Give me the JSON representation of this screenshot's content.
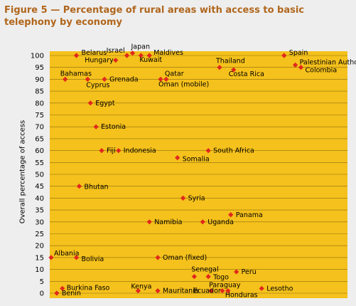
{
  "title": "Figure 5 — Percentage of rural areas with access to basic telephony by economy",
  "chart_data": {
    "type": "scatter",
    "title": "Figure 5 — Percentage of rural areas with access to basic telephony by economy",
    "xlabel": "",
    "ylabel": "Overall percentage of access",
    "ylim": [
      0,
      100
    ],
    "yticks": [
      0,
      5,
      10,
      15,
      20,
      25,
      30,
      35,
      40,
      45,
      50,
      55,
      60,
      65,
      70,
      75,
      80,
      85,
      90,
      95,
      100
    ],
    "grid": "horizontal",
    "colors": {
      "plot_bg": "#f5c11c",
      "grid": "#8a6e10",
      "marker": "#e0281c",
      "title": "#b0661c"
    },
    "points": [
      {
        "label": "Belarus",
        "x": 10,
        "y": 100
      },
      {
        "label": "Israel",
        "x": 28,
        "y": 100
      },
      {
        "label": "Japan",
        "x": 30,
        "y": 101
      },
      {
        "label": "Maldives",
        "x": 36,
        "y": 100
      },
      {
        "label": "Kuwait",
        "x": 33,
        "y": 100
      },
      {
        "label": "Spain",
        "x": 84,
        "y": 100
      },
      {
        "label": "Hungary",
        "x": 24,
        "y": 98
      },
      {
        "label": "Thailand",
        "x": 61,
        "y": 95
      },
      {
        "label": "Palestinian Authority",
        "x": 88,
        "y": 96
      },
      {
        "label": "Colombia",
        "x": 90,
        "y": 95
      },
      {
        "label": "Costa Rica",
        "x": 66,
        "y": 94
      },
      {
        "label": "Bahamas",
        "x": 6,
        "y": 90
      },
      {
        "label": "Cyprus",
        "x": 14,
        "y": 90
      },
      {
        "label": "Grenada",
        "x": 20,
        "y": 90
      },
      {
        "label": "Qatar",
        "x": 42,
        "y": 90
      },
      {
        "label": "Oman (mobile)",
        "x": 40,
        "y": 90
      },
      {
        "label": "Egypt",
        "x": 15,
        "y": 80
      },
      {
        "label": "Estonia",
        "x": 17,
        "y": 70
      },
      {
        "label": "Fiji",
        "x": 19,
        "y": 60
      },
      {
        "label": "Indonesia",
        "x": 25,
        "y": 60
      },
      {
        "label": "South Africa",
        "x": 57,
        "y": 60
      },
      {
        "label": "Somalia",
        "x": 46,
        "y": 57
      },
      {
        "label": "Bhutan",
        "x": 11,
        "y": 45
      },
      {
        "label": "Syria",
        "x": 48,
        "y": 40
      },
      {
        "label": "Panama",
        "x": 65,
        "y": 33
      },
      {
        "label": "Namibia",
        "x": 36,
        "y": 30
      },
      {
        "label": "Uganda",
        "x": 55,
        "y": 30
      },
      {
        "label": "Albania",
        "x": 1,
        "y": 15
      },
      {
        "label": "Bolivia",
        "x": 10,
        "y": 15
      },
      {
        "label": "Oman (fixed)",
        "x": 39,
        "y": 15
      },
      {
        "label": "Peru",
        "x": 67,
        "y": 9
      },
      {
        "label": "Senegal",
        "x": 52,
        "y": 7
      },
      {
        "label": "Togo",
        "x": 57,
        "y": 7
      },
      {
        "label": "Paraguay",
        "x": 58,
        "y": 1
      },
      {
        "label": "Burkina Faso",
        "x": 5,
        "y": 2
      },
      {
        "label": "Kenya",
        "x": 32,
        "y": 1
      },
      {
        "label": "Mauritania",
        "x": 39,
        "y": 1
      },
      {
        "label": "Ecuador",
        "x": 64,
        "y": 1
      },
      {
        "label": "Honduras",
        "x": 62,
        "y": 1
      },
      {
        "label": "Lesotho",
        "x": 76,
        "y": 2
      },
      {
        "label": "Benin",
        "x": 3,
        "y": 0
      }
    ]
  }
}
